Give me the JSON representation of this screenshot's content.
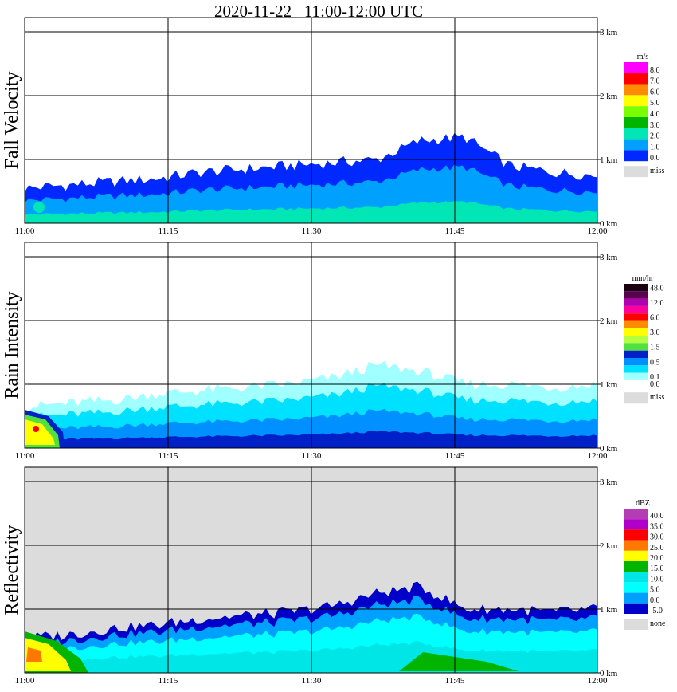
{
  "title": "2020-11-22   11:00-12:00 UTC",
  "x_ticks": [
    "11:00",
    "11:15",
    "11:30",
    "11:45",
    "12:00"
  ],
  "y_ticks": [
    "0 km",
    "1 km",
    "2 km",
    "3 km"
  ],
  "panels": [
    {
      "label": "Fall Velocity",
      "unit": "m/s",
      "missing_label": "miss",
      "missing_color": "#dcdcdc",
      "background": "#ffffff",
      "legend": [
        {
          "label": "8.0",
          "color": "#ff00ff"
        },
        {
          "label": "7.0",
          "color": "#ff0000"
        },
        {
          "label": "6.0",
          "color": "#ff8c00"
        },
        {
          "label": "5.0",
          "color": "#ffff00"
        },
        {
          "label": "4.0",
          "color": "#7cfc00"
        },
        {
          "label": "3.0",
          "color": "#00b400"
        },
        {
          "label": "2.0",
          "color": "#00e6b4"
        },
        {
          "label": "1.0",
          "color": "#00a0ff"
        },
        {
          "label": "0.0",
          "color": "#0028ff"
        }
      ]
    },
    {
      "label": "Rain Intensity",
      "unit": "mm/hr",
      "missing_label": "miss",
      "missing_color": "#dcdcdc",
      "background": "#ffffff",
      "legend": [
        {
          "label": "48.0",
          "color": "#1a0010"
        },
        {
          "label": "",
          "color": "#5a0050"
        },
        {
          "label": "12.0",
          "color": "#b000b0"
        },
        {
          "label": "",
          "color": "#ff00a0"
        },
        {
          "label": "6.0",
          "color": "#ff0000"
        },
        {
          "label": "",
          "color": "#ff8c00"
        },
        {
          "label": "3.0",
          "color": "#ffff00"
        },
        {
          "label": "",
          "color": "#b4ff40"
        },
        {
          "label": "1.5",
          "color": "#50e040"
        },
        {
          "label": "",
          "color": "#0020c8"
        },
        {
          "label": "0.5",
          "color": "#0090ff"
        },
        {
          "label": "",
          "color": "#00e0ff"
        },
        {
          "label": "0.1",
          "color": "#a0ffff"
        },
        {
          "label": "0.0",
          "color": "#ffffff"
        }
      ]
    },
    {
      "label": "Reflectivity",
      "unit": "dBZ",
      "missing_label": "none",
      "missing_color": "#dcdcdc",
      "background": "#dcdcdc",
      "legend": [
        {
          "label": "40.0",
          "color": "#b43cb4"
        },
        {
          "label": "35.0",
          "color": "#b000c8"
        },
        {
          "label": "30.0",
          "color": "#ff0000"
        },
        {
          "label": "25.0",
          "color": "#ff7800"
        },
        {
          "label": "20.0",
          "color": "#ffff00"
        },
        {
          "label": "15.0",
          "color": "#00b400"
        },
        {
          "label": "10.0",
          "color": "#00e6e6"
        },
        {
          "label": "5.0",
          "color": "#00ffff"
        },
        {
          "label": "0.0",
          "color": "#00a0ff"
        },
        {
          "label": "-5.0",
          "color": "#0000c8"
        }
      ]
    }
  ],
  "chart_data": {
    "type": "heatmap",
    "title": "2020-11-22   11:00-12:00 UTC",
    "x_range": [
      "11:00",
      "12:00"
    ],
    "y_range_km": [
      0,
      3.2
    ],
    "panels": [
      {
        "name": "Fall Velocity",
        "unit": "m/s",
        "scale": [
          0,
          1,
          2,
          3,
          4,
          5,
          6,
          7,
          8
        ],
        "echo_top_km": [
          0.55,
          0.6,
          0.65,
          0.7,
          0.8,
          0.85,
          0.9,
          0.95,
          1.0,
          1.3,
          1.35,
          0.9,
          0.8,
          0.75
        ]
      },
      {
        "name": "Rain Intensity",
        "unit": "mm/hr",
        "scale": [
          0.0,
          0.1,
          0.5,
          1.5,
          3.0,
          6.0,
          12.0,
          48.0
        ],
        "echo_top_km": [
          0.65,
          0.7,
          0.75,
          0.85,
          0.9,
          0.95,
          1.0,
          1.1,
          1.3,
          1.2,
          1.0,
          1.0,
          0.95,
          1.0
        ]
      },
      {
        "name": "Reflectivity",
        "unit": "dBZ",
        "scale": [
          -5,
          0,
          5,
          10,
          15,
          20,
          25,
          30,
          35,
          40
        ],
        "echo_top_km": [
          0.55,
          0.6,
          0.7,
          0.75,
          0.85,
          0.9,
          0.95,
          1.05,
          1.25,
          1.35,
          1.0,
          1.0,
          0.95,
          1.0
        ]
      }
    ]
  }
}
